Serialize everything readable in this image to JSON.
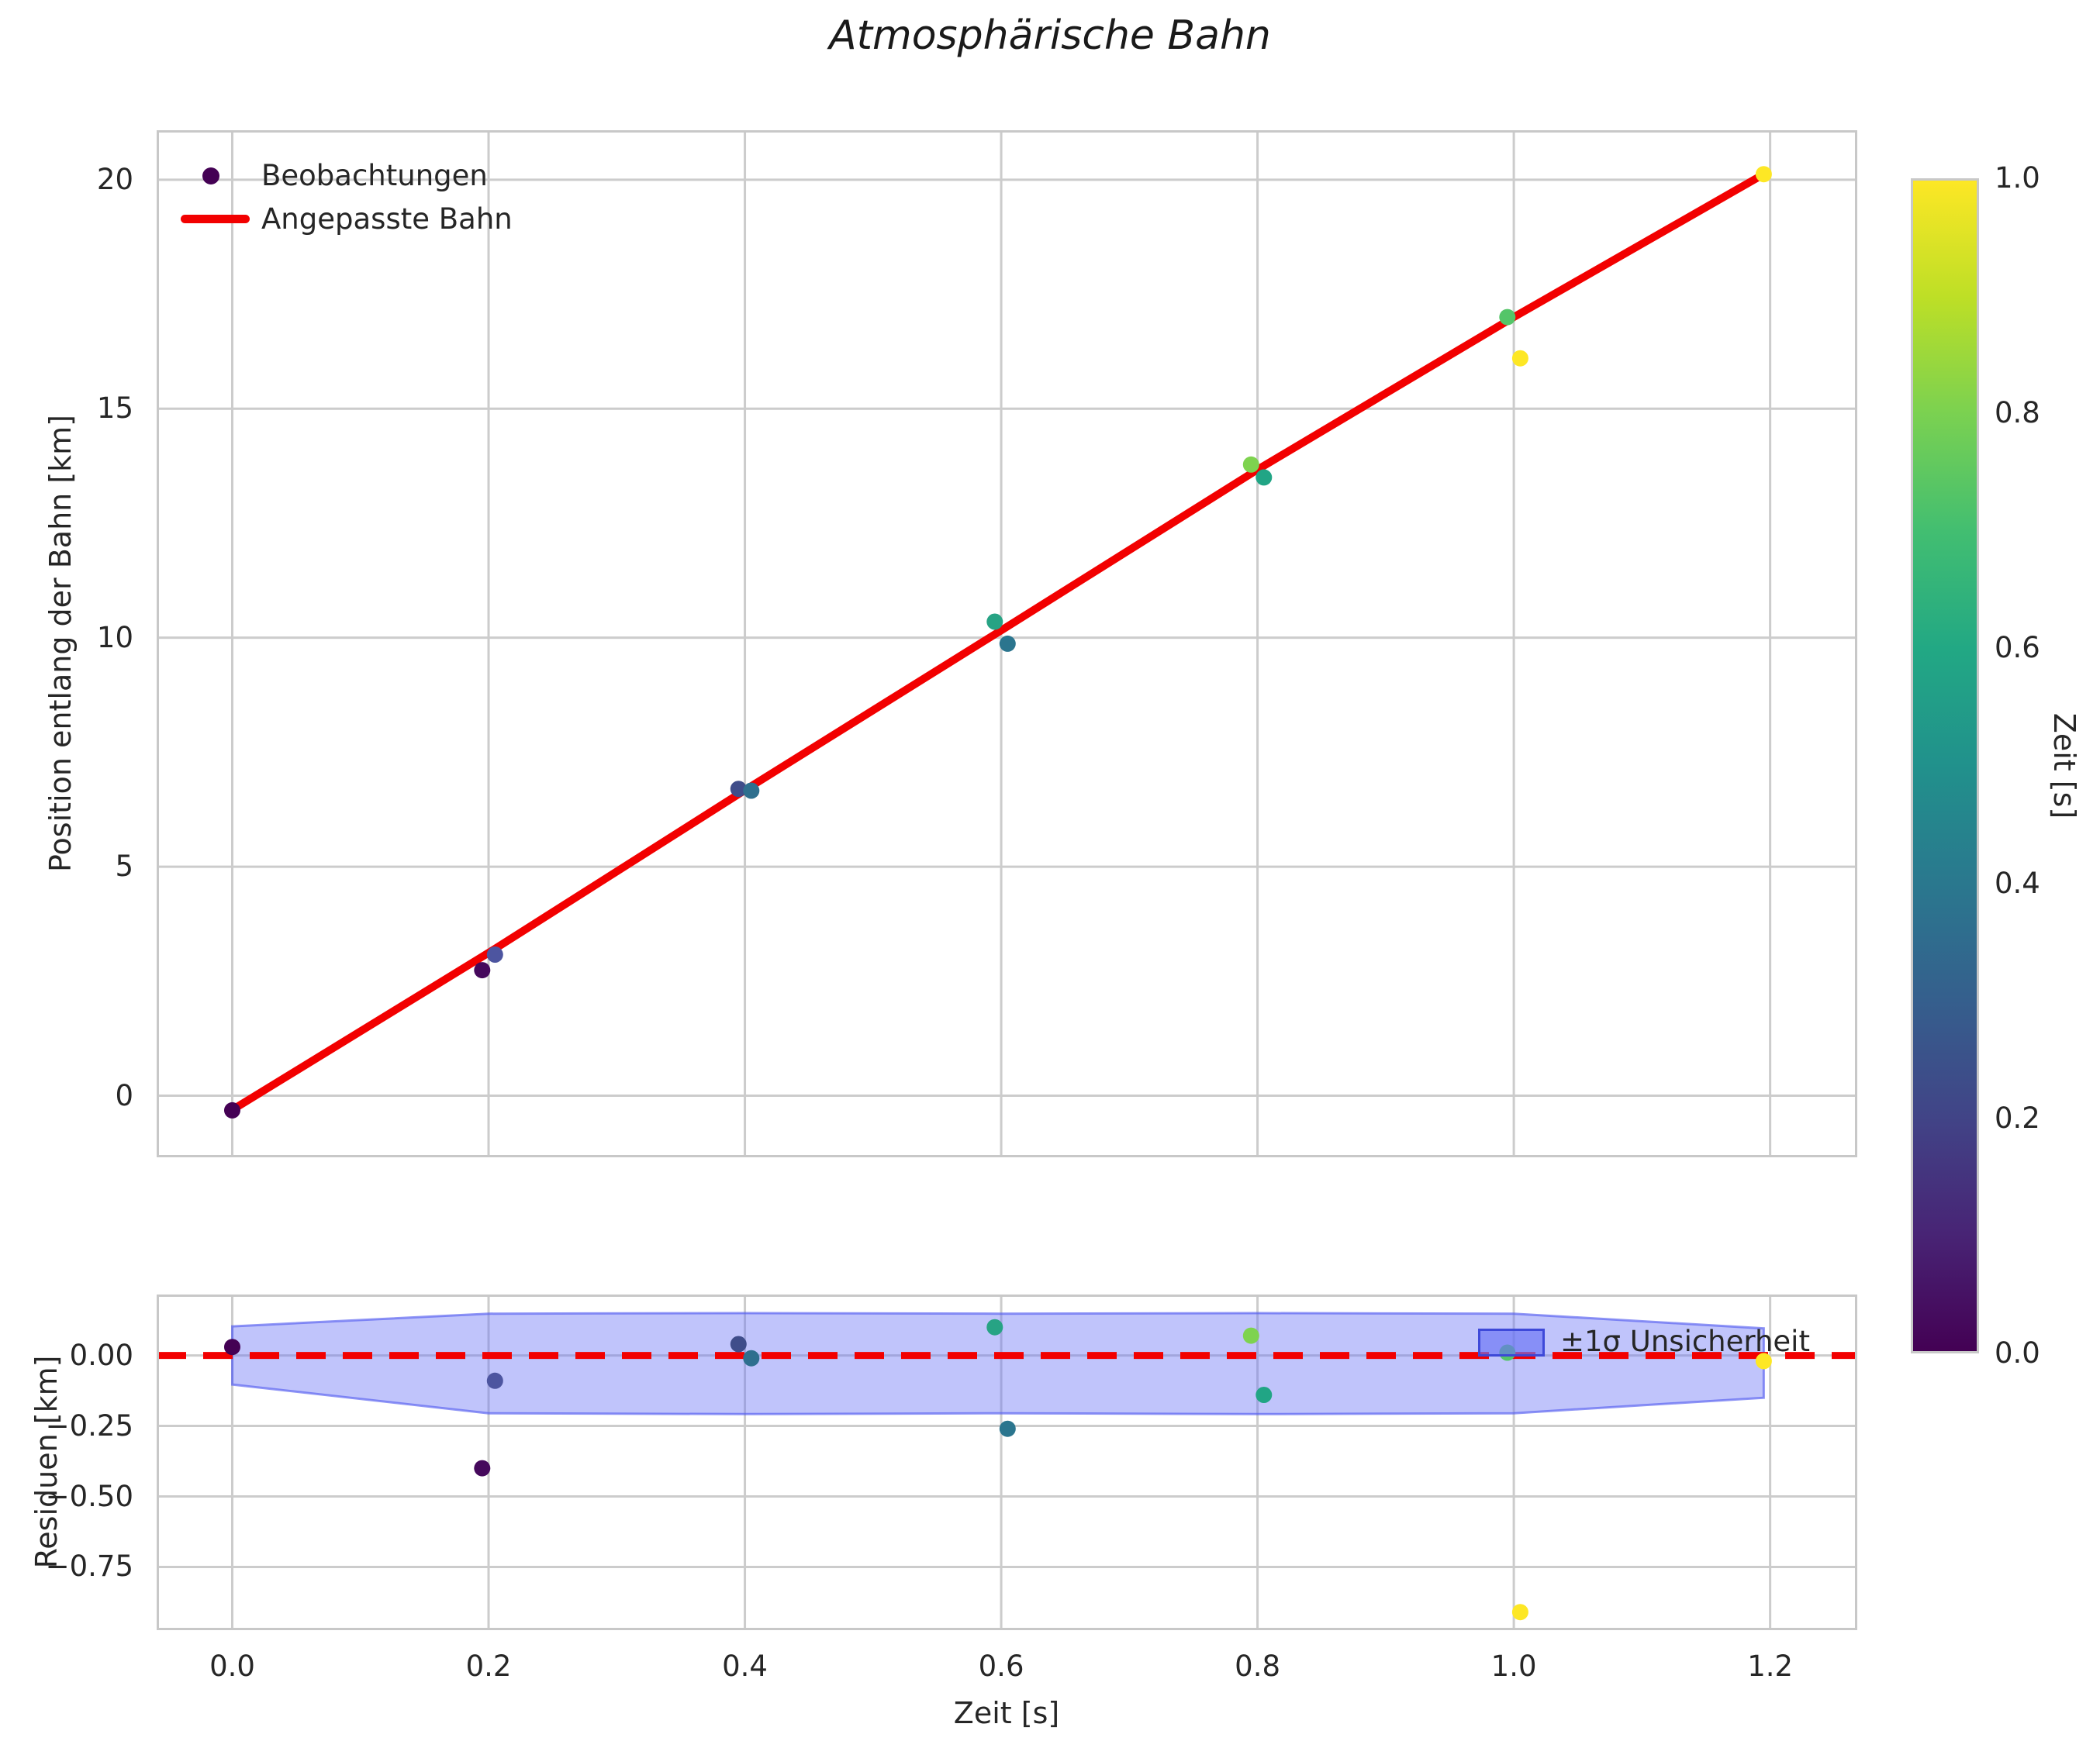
{
  "title": "Atmosphärische Bahn",
  "colors": {
    "accent_red": "#f20000",
    "text": "#262626",
    "grid": "#cccccc",
    "spine": "#c8c8c8",
    "band_fill": "rgba(105,115,245,0.42)",
    "band_edge": "rgba(84,94,240,0.65)",
    "legend_patch_fill": "rgba(105,115,245,0.65)",
    "legend_patch_edge": "rgba(58,70,215,0.95)"
  },
  "chart_data": [
    {
      "id": "trajectory",
      "type": "scatter",
      "ylabel": "Position entlang der Bahn [km]",
      "xlim": [
        -0.059,
        1.268
      ],
      "ylim": [
        -1.345,
        21.08
      ],
      "grid": true,
      "yticks": [
        {
          "v": 0,
          "label": "0"
        },
        {
          "v": 5,
          "label": "5"
        },
        {
          "v": 10,
          "label": "10"
        },
        {
          "v": 15,
          "label": "15"
        },
        {
          "v": 20,
          "label": "20"
        }
      ],
      "legend": [
        {
          "label": "Beobachtungen",
          "marker": "dot",
          "color": "#440154"
        },
        {
          "label": "Angepasste Bahn",
          "marker": "line",
          "color": "#f20000"
        }
      ],
      "series": [
        {
          "name": "Beobachtungen",
          "type": "scatter",
          "points": [
            {
              "t": 0.0,
              "pos": -0.32,
              "color": "#440154"
            },
            {
              "t": 0.195,
              "pos": 2.74,
              "color": "#45085c"
            },
            {
              "t": 0.205,
              "pos": 3.08,
              "color": "#4d55a0"
            },
            {
              "t": 0.395,
              "pos": 6.7,
              "color": "#3f4d8a"
            },
            {
              "t": 0.405,
              "pos": 6.66,
              "color": "#2e6f8e"
            },
            {
              "t": 0.595,
              "pos": 10.35,
              "color": "#27a384"
            },
            {
              "t": 0.605,
              "pos": 9.87,
              "color": "#2b758e"
            },
            {
              "t": 0.795,
              "pos": 13.78,
              "color": "#7ed34f"
            },
            {
              "t": 0.805,
              "pos": 13.5,
              "color": "#21a585"
            },
            {
              "t": 0.995,
              "pos": 17.0,
              "color": "#54c568"
            },
            {
              "t": 1.005,
              "pos": 16.1,
              "color": "#fde725"
            },
            {
              "t": 1.195,
              "pos": 20.12,
              "color": "#fde725"
            }
          ]
        },
        {
          "name": "Angepasste Bahn",
          "type": "line",
          "color": "#f20000",
          "x": [
            0.0,
            0.2,
            0.4,
            0.6,
            0.8,
            1.0,
            1.195
          ],
          "y": [
            -0.31,
            3.12,
            6.67,
            10.16,
            13.67,
            17.0,
            20.12
          ]
        }
      ]
    },
    {
      "id": "residuals",
      "type": "scatter",
      "ylabel": "Residuen [km]",
      "xlabel": "Zeit [s]",
      "xlim": [
        -0.059,
        1.268
      ],
      "ylim": [
        -0.974,
        0.216
      ],
      "grid": true,
      "yticks": [
        {
          "v": 0.0,
          "label": "0.00"
        },
        {
          "v": -0.25,
          "label": "−0.25"
        },
        {
          "v": -0.5,
          "label": "−0.50"
        },
        {
          "v": -0.75,
          "label": "−0.75"
        }
      ],
      "xticks": [
        {
          "v": 0.0,
          "label": "0.0"
        },
        {
          "v": 0.2,
          "label": "0.2"
        },
        {
          "v": 0.4,
          "label": "0.4"
        },
        {
          "v": 0.6,
          "label": "0.6"
        },
        {
          "v": 0.8,
          "label": "0.8"
        },
        {
          "v": 1.0,
          "label": "1.0"
        },
        {
          "v": 1.2,
          "label": "1.2"
        }
      ],
      "zero_line": {
        "y": 0,
        "style": "dashed",
        "color": "#f20000"
      },
      "band": {
        "label": "±1σ Unsicherheit",
        "x": [
          0.0,
          0.2,
          0.4,
          0.6,
          0.8,
          1.0,
          1.195
        ],
        "upper": [
          0.103,
          0.148,
          0.15,
          0.148,
          0.15,
          0.148,
          0.096
        ],
        "lower": [
          -0.103,
          -0.205,
          -0.208,
          -0.205,
          -0.208,
          -0.205,
          -0.15
        ]
      },
      "points": [
        {
          "t": 0.0,
          "res": 0.03,
          "color": "#440154"
        },
        {
          "t": 0.195,
          "res": -0.4,
          "color": "#45085c"
        },
        {
          "t": 0.205,
          "res": -0.09,
          "color": "#4d55a0"
        },
        {
          "t": 0.395,
          "res": 0.04,
          "color": "#3f4d8a"
        },
        {
          "t": 0.405,
          "res": -0.01,
          "color": "#2e6f8e"
        },
        {
          "t": 0.595,
          "res": 0.1,
          "color": "#27a384"
        },
        {
          "t": 0.605,
          "res": -0.26,
          "color": "#2b758e"
        },
        {
          "t": 0.795,
          "res": 0.07,
          "color": "#7ed34f"
        },
        {
          "t": 0.805,
          "res": -0.14,
          "color": "#21a585"
        },
        {
          "t": 0.995,
          "res": 0.01,
          "color": "#54c568"
        },
        {
          "t": 1.005,
          "res": -0.91,
          "color": "#fde725"
        },
        {
          "t": 1.195,
          "res": -0.02,
          "color": "#fde725"
        }
      ]
    }
  ],
  "colorbar": {
    "label": "Zeit [s]",
    "min": 0.0,
    "max": 1.0,
    "ticks": [
      {
        "v": 1.0,
        "label": "1.0"
      },
      {
        "v": 0.8,
        "label": "0.8"
      },
      {
        "v": 0.6,
        "label": "0.6"
      },
      {
        "v": 0.4,
        "label": "0.4"
      },
      {
        "v": 0.2,
        "label": "0.2"
      },
      {
        "v": 0.0,
        "label": "0.0"
      }
    ],
    "stops": [
      "#440154",
      "#482475",
      "#414487",
      "#355f8d",
      "#2a788e",
      "#21918c",
      "#22a884",
      "#42be71",
      "#7ad151",
      "#bddf26",
      "#fde725"
    ]
  }
}
